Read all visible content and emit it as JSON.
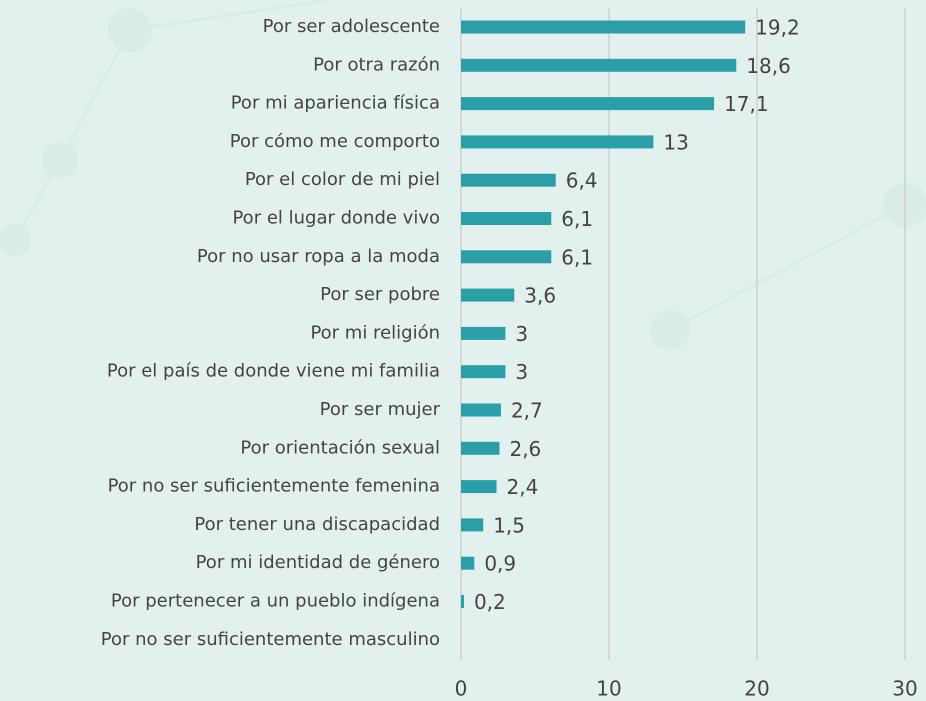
{
  "chart_data": {
    "type": "barh",
    "categories": [
      "Por ser adolescente",
      "Por otra razón",
      "Por mi apariencia física",
      "Por cómo me comporto",
      "Por el color de mi piel",
      "Por el lugar donde vivo",
      "Por no usar ropa a la moda",
      "Por ser pobre",
      "Por mi religión",
      "Por el país de donde viene mi familia",
      "Por ser mujer",
      "Por orientación sexual",
      "Por no ser suficientemente femenina",
      "Por tener una discapacidad",
      "Por mi identidad de género",
      "Por pertenecer a un pueblo indígena",
      "Por no ser suficientemente masculino"
    ],
    "values": [
      19.2,
      18.6,
      17.1,
      13,
      6.4,
      6.1,
      6.1,
      3.6,
      3,
      3,
      2.7,
      2.6,
      2.4,
      1.5,
      0.9,
      0.2,
      null
    ],
    "value_labels": [
      "19,2",
      "18,6",
      "17,1",
      "13",
      "6,4",
      "6,1",
      "6,1",
      "3,6",
      "3",
      "3",
      "2,7",
      "2,6",
      "2,4",
      "1,5",
      "0,9",
      "0,2",
      null
    ],
    "color": "#2a9fa7",
    "xlim": [
      0,
      30
    ],
    "xticks": [
      0,
      10,
      20,
      30
    ],
    "grid": true
  }
}
